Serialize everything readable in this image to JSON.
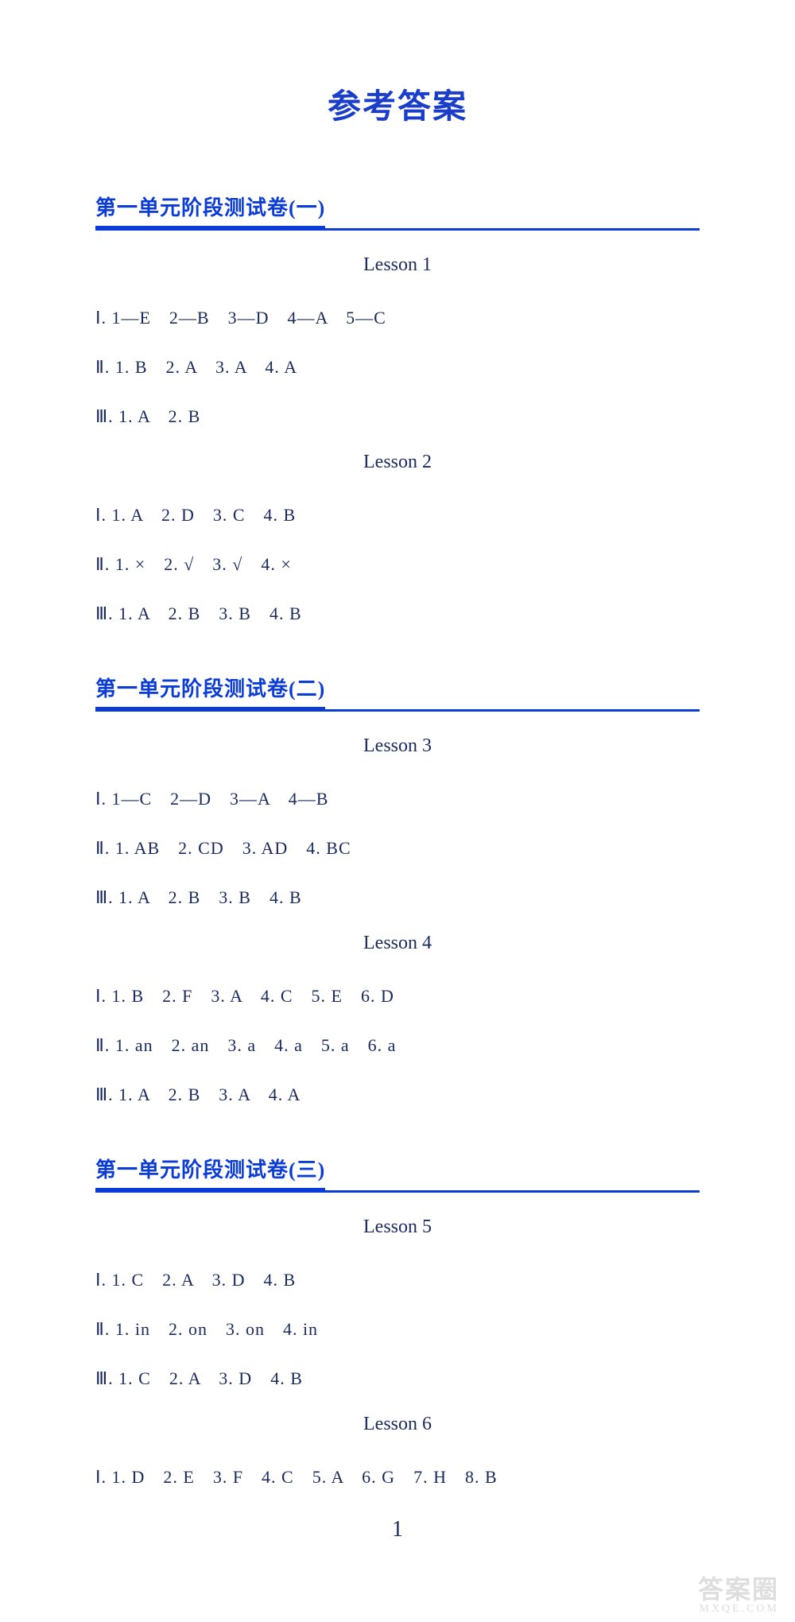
{
  "title": "参考答案",
  "sections": [
    {
      "header": "第一单元阶段测试卷(一)",
      "lessons": [
        {
          "title": "Lesson 1",
          "lines": [
            "Ⅰ. 1—E　2—B　3—D　4—A　5—C",
            "Ⅱ. 1. B　2. A　3. A　4. A",
            "Ⅲ. 1. A　2. B"
          ]
        },
        {
          "title": "Lesson 2",
          "lines": [
            "Ⅰ. 1. A　2. D　3. C　4. B",
            "Ⅱ. 1. ×　2. √　3. √　4. ×",
            "Ⅲ. 1. A　2. B　3. B　4. B"
          ]
        }
      ]
    },
    {
      "header": "第一单元阶段测试卷(二)",
      "lessons": [
        {
          "title": "Lesson 3",
          "lines": [
            "Ⅰ. 1—C　2—D　3—A　4—B",
            "Ⅱ. 1. AB　2. CD　3. AD　4. BC",
            "Ⅲ. 1. A　2. B　3. B　4. B"
          ]
        },
        {
          "title": "Lesson 4",
          "lines": [
            "Ⅰ. 1. B　2. F　3. A　4. C　5. E　6. D",
            "Ⅱ. 1. an　2. an　3. a　4. a　5. a　6. a",
            "Ⅲ. 1. A　2. B　3. A　4. A"
          ]
        }
      ]
    },
    {
      "header": "第一单元阶段测试卷(三)",
      "lessons": [
        {
          "title": "Lesson 5",
          "lines": [
            "Ⅰ. 1. C　2. A　3. D　4. B",
            "Ⅱ. 1. in　2. on　3. on　4. in",
            "Ⅲ. 1. C　2. A　3. D　4. B"
          ]
        },
        {
          "title": "Lesson 6",
          "lines": [
            "Ⅰ. 1. D　2. E　3. F　4. C　5. A　6. G　7. H　8. B"
          ]
        }
      ]
    }
  ],
  "page_number": "1",
  "watermark_main": "答案圈",
  "watermark_sub": "MXQE.COM",
  "colors": {
    "title_color": "#1a3ec9",
    "header_color": "#0c3cd6",
    "underline_color": "#0c3cd6",
    "text_color": "#1a2a5e",
    "background": "#ffffff",
    "watermark_color": "rgba(200,200,200,0.6)"
  },
  "typography": {
    "title_fontsize": 42,
    "header_fontsize": 26,
    "lesson_fontsize": 24,
    "answer_fontsize": 22,
    "font_family_cn": "SimSun",
    "font_family_en": "Times New Roman"
  }
}
